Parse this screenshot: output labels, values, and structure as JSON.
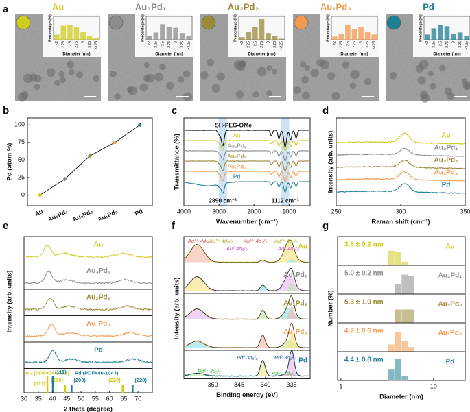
{
  "chart_data": [
    {
      "type": "tem",
      "panel": "a",
      "categories": [
        "<2",
        "2.25",
        "2.5",
        "2.75",
        "3",
        "3.25",
        ">3.25"
      ],
      "y_label": "Percentage (%)",
      "x_label": "Diameter (nm)",
      "ylim": [
        0,
        45
      ],
      "series": [
        {
          "name": "Au",
          "color": "#cfcc1d",
          "values": [
            10,
            27,
            28,
            25,
            15,
            8,
            3
          ]
        },
        {
          "name": "Au₃Pd₁",
          "color": "#8c8c8c",
          "values": [
            8,
            14,
            30,
            25,
            23,
            13,
            8
          ]
        },
        {
          "name": "Au₂Pd₂",
          "color": "#9b8a3a",
          "values": [
            5,
            15,
            25,
            40,
            13,
            8,
            2
          ]
        },
        {
          "name": "Au₁Pd₃",
          "color": "#f39a4f",
          "values": [
            6,
            12,
            28,
            20,
            25,
            15,
            10
          ]
        },
        {
          "name": "Pd",
          "color": "#1f7f95",
          "values": [
            10,
            22,
            28,
            26,
            12,
            14,
            8
          ]
        }
      ]
    },
    {
      "type": "line",
      "panel": "b",
      "categories": [
        "Au",
        "Au₃Pd₁",
        "Au₂Pd₂",
        "Au₁Pd₃",
        "Pd"
      ],
      "values": [
        0,
        23,
        56,
        75,
        100
      ],
      "errors": [
        1,
        3,
        2,
        3,
        1
      ],
      "point_colors": [
        "#cfcc1d",
        "#8c8c8c",
        "#9b8a3a",
        "#f39a4f",
        "#1f7f95"
      ],
      "y_label": "Pd (atom %)",
      "ylim": [
        -15,
        110
      ],
      "yticks": [
        0,
        25,
        50,
        75,
        100
      ]
    },
    {
      "type": "ftir",
      "panel": "c",
      "x_label": "Wavenumber (cm⁻¹)",
      "y_label": "Transmittance (%)",
      "xlim": [
        4000,
        400
      ],
      "xticks": [
        4000,
        3000,
        2000,
        1000
      ],
      "bands": [
        {
          "value": 2890,
          "label": "2890 cm⁻¹"
        },
        {
          "value": 1112,
          "label": "1112 cm⁻¹"
        }
      ],
      "series": [
        {
          "name": "SH-PEG-OMe",
          "color": "#111111"
        },
        {
          "name": "Au",
          "color": "#cfcc1d"
        },
        {
          "name": "Au₃Pd₁",
          "color": "#8c8c8c"
        },
        {
          "name": "Au₂Pd₂",
          "color": "#9b8a3a"
        },
        {
          "name": "Au₁Pd₃",
          "color": "#f39a4f"
        },
        {
          "name": "Pd",
          "color": "#1f7f95"
        }
      ]
    },
    {
      "type": "raman",
      "panel": "d",
      "x_label": "Raman shift (cm⁻¹)",
      "y_label": "Intensity (arb. units)",
      "xlim": [
        250,
        350
      ],
      "xticks": [
        250,
        300,
        350
      ],
      "series": [
        {
          "name": "Au",
          "color": "#cfcc1d"
        },
        {
          "name": "Au₃Pd₁",
          "color": "#8c8c8c"
        },
        {
          "name": "Au₂Pd₂",
          "color": "#9b8a3a"
        },
        {
          "name": "Au₁Pd₃",
          "color": "#f39a4f"
        },
        {
          "name": "Pd",
          "color": "#1f7f95"
        }
      ]
    },
    {
      "type": "xrd",
      "panel": "e",
      "x_label": "2 theta (degree)",
      "y_label": "Intensity (arb. units)",
      "xlim": [
        30,
        75
      ],
      "xticks": [
        30,
        35,
        40,
        45,
        50,
        55,
        60,
        65,
        70
      ],
      "series": [
        {
          "name": "Au",
          "color": "#cfcc1d"
        },
        {
          "name": "Au₃Pd₁",
          "color": "#8c8c8c"
        },
        {
          "name": "Au₂Pd₂",
          "color": "#9b8a3a"
        },
        {
          "name": "Au₁Pd₃",
          "color": "#f39a4f"
        },
        {
          "name": "Pd",
          "color": "#1f7f95"
        }
      ],
      "references": [
        {
          "name": "Au (PDF#04-0784)",
          "color": "#cfcc1d",
          "peaks": [
            {
              "value": 38.2,
              "label": "(111)"
            },
            {
              "value": 44.4,
              "label": "(200)"
            },
            {
              "value": 64.6,
              "label": "(220)"
            }
          ]
        },
        {
          "name": "Pd (PDF#46-1043)",
          "color": "#1f7f95",
          "peaks": [
            {
              "value": 40.1,
              "label": "(111)"
            },
            {
              "value": 46.7,
              "label": "(200)"
            },
            {
              "value": 68.1,
              "label": "(220)"
            }
          ]
        }
      ]
    },
    {
      "type": "xps",
      "panel": "f",
      "x_label": "Binding energy (eV)",
      "y_label": "Intensity (arb. units)",
      "xlim": [
        355.5,
        331.5
      ],
      "xticks": [
        350,
        345,
        340,
        335
      ],
      "series": [
        {
          "name": "Au",
          "color": "#cfcc1d"
        },
        {
          "name": "Au₃Pd₁",
          "color": "#8c8c8c"
        },
        {
          "name": "Au₂Pd₂",
          "color": "#9b8a3a"
        },
        {
          "name": "Au₁Pd₃",
          "color": "#f39a4f"
        },
        {
          "name": "Pd",
          "color": "#1f7f95"
        }
      ],
      "au_labels": [
        {
          "text": "Au¹⁺ 4d₅/₂",
          "color": "#e0504a"
        },
        {
          "text": "Au¹⁺ 4d₅/₂",
          "color": "#b8a914"
        },
        {
          "text": "Au⁰ 4d₅/₂",
          "color": "#c74fd0"
        },
        {
          "text": "Au¹⁺ 4d₃/₂",
          "color": "#e0504a"
        },
        {
          "text": "Au¹⁺ 4d₃/₂",
          "color": "#b8a914"
        },
        {
          "text": "Au⁰ 4d₃/₂",
          "color": "#c74fd0"
        }
      ],
      "pd_labels": [
        {
          "text": "Pd²⁺ 3d₅/₂",
          "color": "#48b848"
        },
        {
          "text": "Pd⁰ 3d₅/₂",
          "color": "#1f5fb0"
        },
        {
          "text": "Pd⁰ 3d₃/₂",
          "color": "#1f5fb0"
        },
        {
          "text": "Pd²⁺ 3d₃/₂",
          "color": "#48b848"
        }
      ]
    },
    {
      "type": "histogram",
      "panel": "g",
      "x_label": "Diameter (nm)",
      "y_label": "Number (%)",
      "xlim": [
        0.92,
        22
      ],
      "xticks": [
        1,
        10
      ],
      "log_x": true,
      "ylim": [
        0,
        100
      ],
      "series": [
        {
          "name": "Au",
          "label": "3.8 ± 0.2 nm",
          "color": "#cfcc1d",
          "bins": [
            3.2,
            3.8,
            4.5,
            5.3
          ],
          "counts": [
            60,
            55,
            15
          ]
        },
        {
          "name": "Au₃Pd₁",
          "label": "5.0 ± 0.2 nm",
          "color": "#8c8c8c",
          "bins": [
            3.8,
            4.5,
            5.3,
            6.2
          ],
          "counts": [
            40,
            80,
            75
          ]
        },
        {
          "name": "Au₂Pd₂",
          "label": "5.3 ± 1.0 nm",
          "color": "#9b8a3a",
          "bins": [
            3.8,
            4.5,
            5.3,
            6.2
          ],
          "counts": [
            55,
            55,
            55
          ]
        },
        {
          "name": "Au₁Pd₃",
          "label": "4.7 ± 0.6 nm",
          "color": "#f39a4f",
          "bins": [
            3.2,
            3.8,
            4.5,
            5.3,
            6.2
          ],
          "counts": [
            30,
            80,
            45,
            20
          ]
        },
        {
          "name": "Pd",
          "label": "4.4 ± 0.8 nm",
          "color": "#1f7f95",
          "bins": [
            3.2,
            3.8,
            4.5,
            5.3
          ],
          "counts": [
            45,
            90,
            20
          ]
        }
      ]
    }
  ]
}
